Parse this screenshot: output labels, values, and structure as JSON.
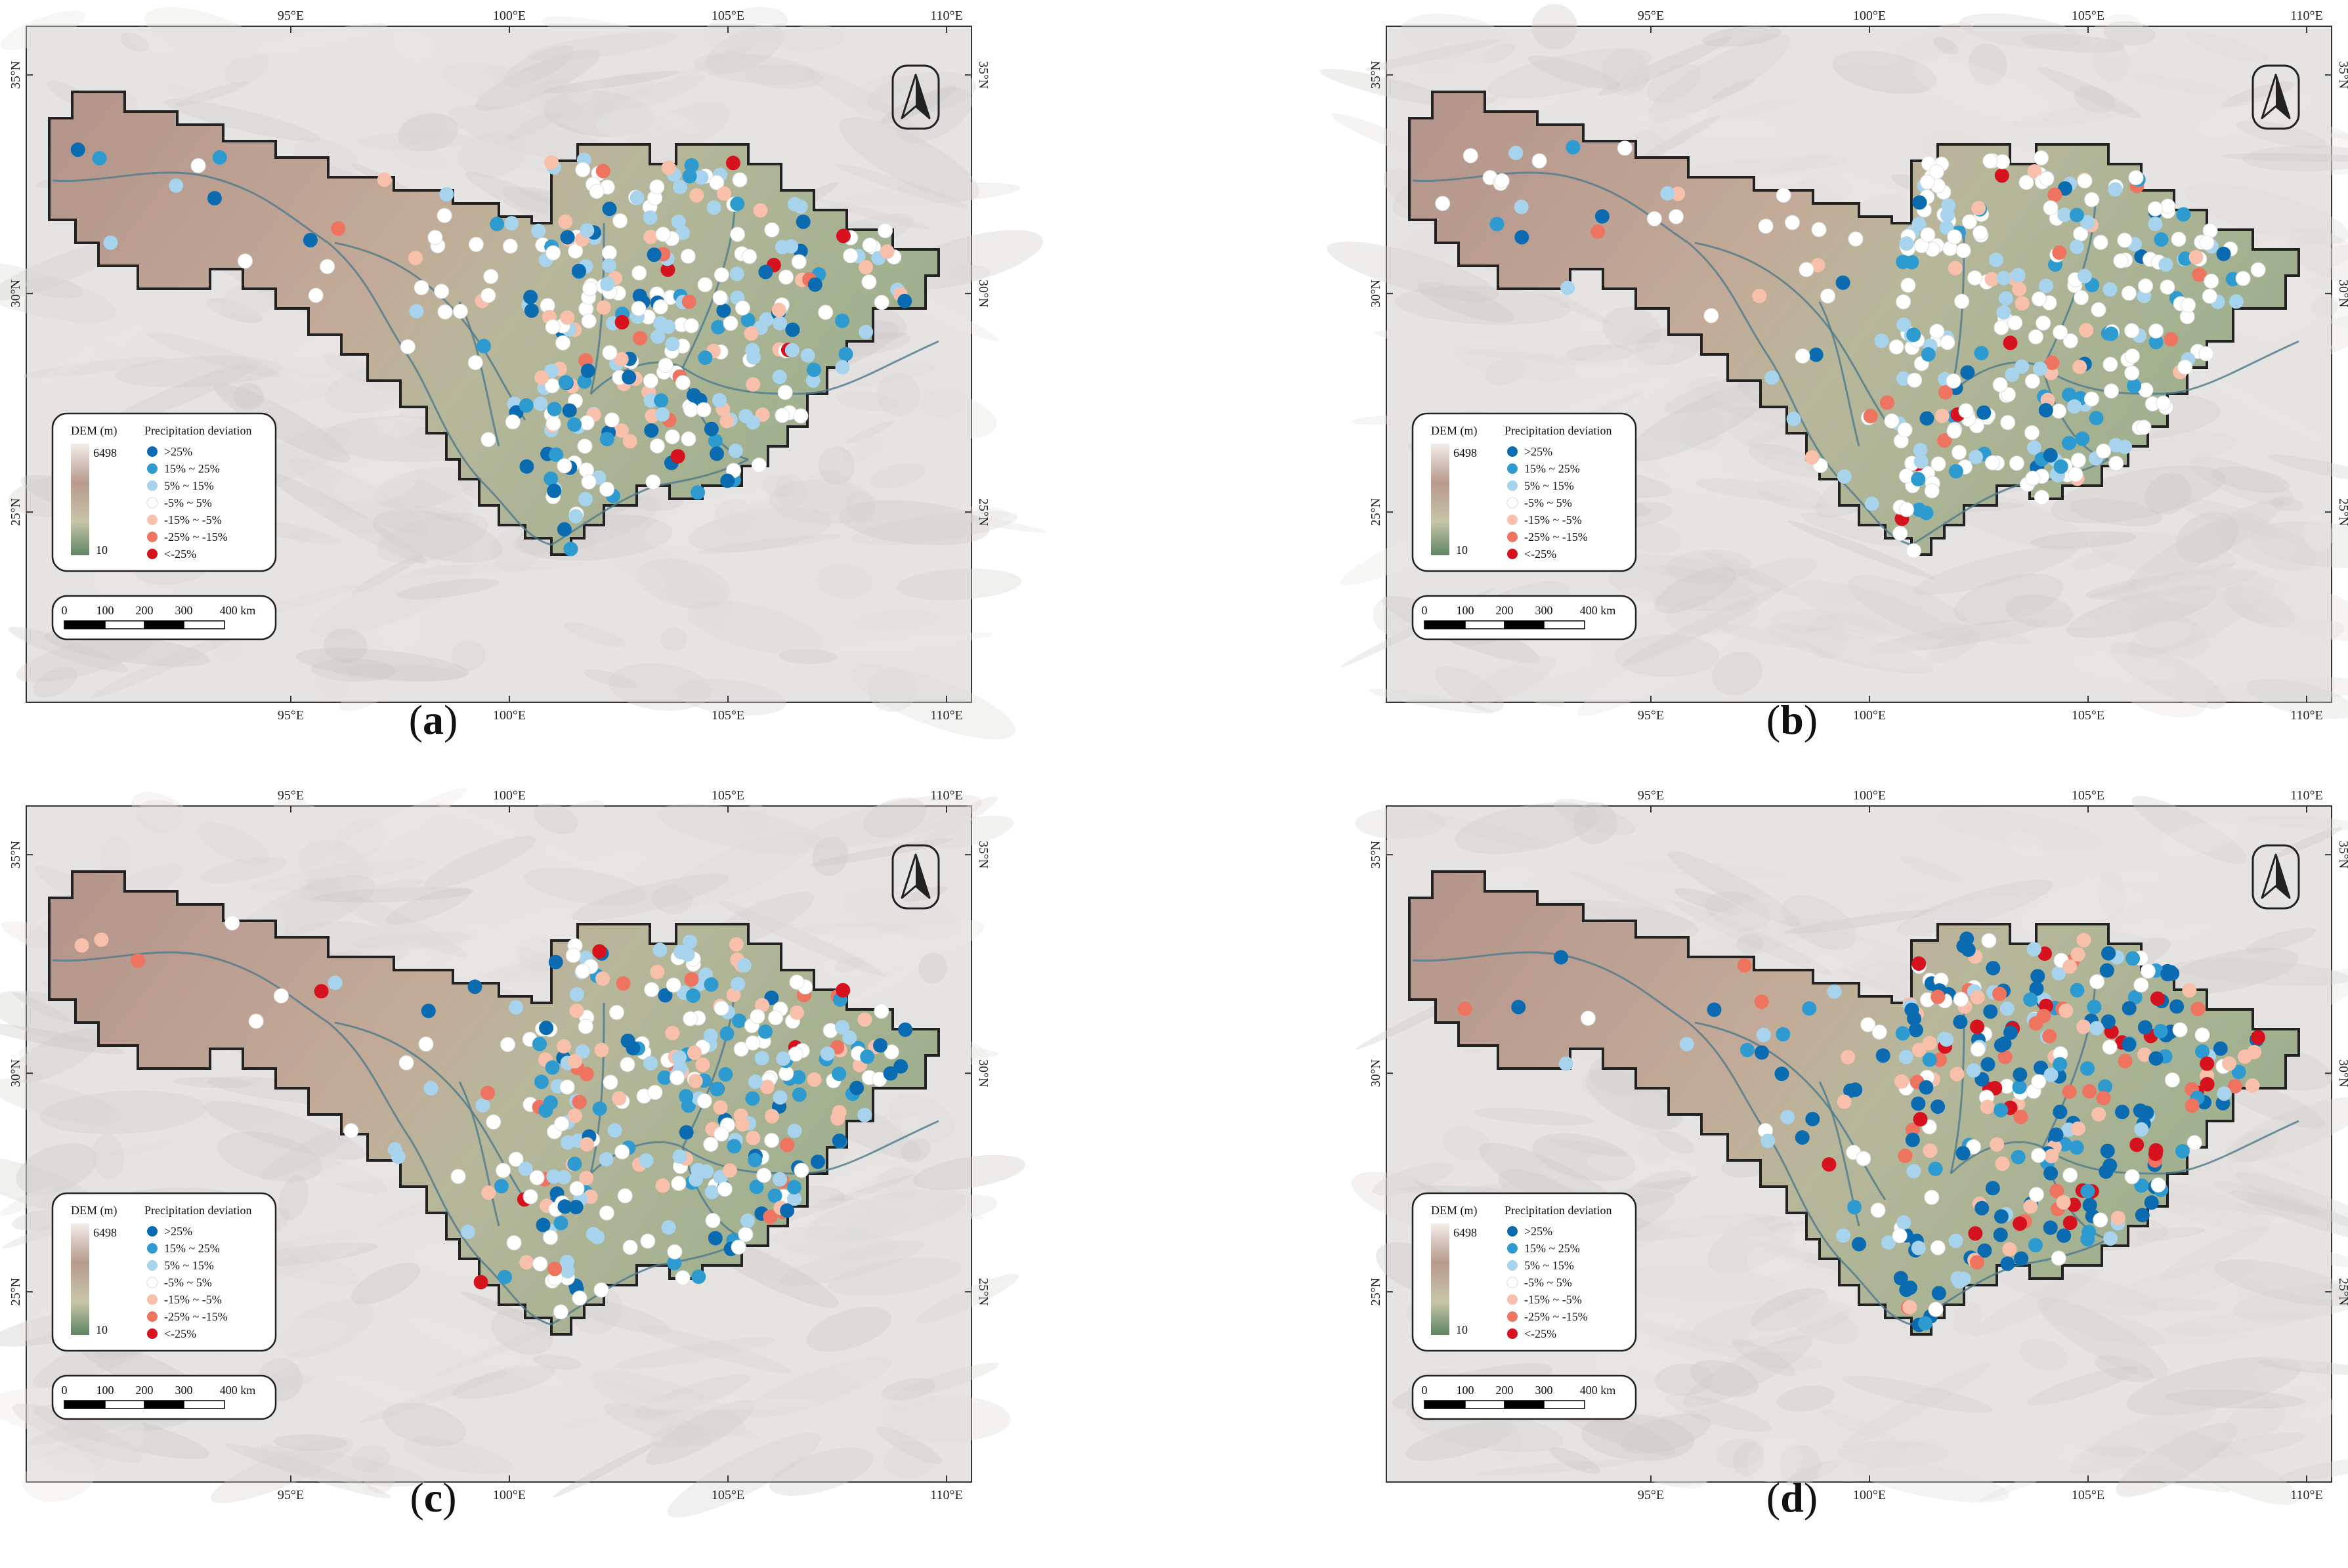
{
  "axes": {
    "lon_ticks": [
      "95°E",
      "100°E",
      "105°E",
      "110°E"
    ],
    "lat_ticks": [
      "35°N",
      "30°N",
      "25°N"
    ]
  },
  "legend": {
    "dem_title": "DEM (m)",
    "dem_max": "6498",
    "dem_min": "10",
    "precip_title": "Precipitation deviation",
    "classes": [
      {
        "label": ">25%",
        "color": "#0a6bb0"
      },
      {
        "label": "15% ~ 25%",
        "color": "#2e9bd0"
      },
      {
        "label": "5% ~ 15%",
        "color": "#a7d3ec"
      },
      {
        "label": "-5% ~ 5%",
        "color": "#ffffff"
      },
      {
        "label": "-15% ~ -5%",
        "color": "#f8c0aa"
      },
      {
        "label": "-25% ~ -15%",
        "color": "#ee7460"
      },
      {
        "label": "<-25%",
        "color": "#d7121f"
      }
    ]
  },
  "scalebar": {
    "ticks": [
      "0",
      "100",
      "200",
      "300",
      "400 km"
    ]
  },
  "north_arrow_icon": "north-arrow-icon",
  "panels": [
    {
      "id": "a",
      "caption": "a",
      "seed": 11,
      "mix": [
        12,
        14,
        24,
        30,
        14,
        5,
        1
      ]
    },
    {
      "id": "b",
      "caption": "b",
      "seed": 23,
      "mix": [
        6,
        10,
        20,
        50,
        8,
        4,
        2
      ]
    },
    {
      "id": "c",
      "caption": "c",
      "seed": 37,
      "mix": [
        10,
        14,
        20,
        34,
        14,
        7,
        1
      ]
    },
    {
      "id": "d",
      "caption": "d",
      "seed": 53,
      "mix": [
        30,
        12,
        14,
        14,
        10,
        10,
        10
      ]
    }
  ]
}
